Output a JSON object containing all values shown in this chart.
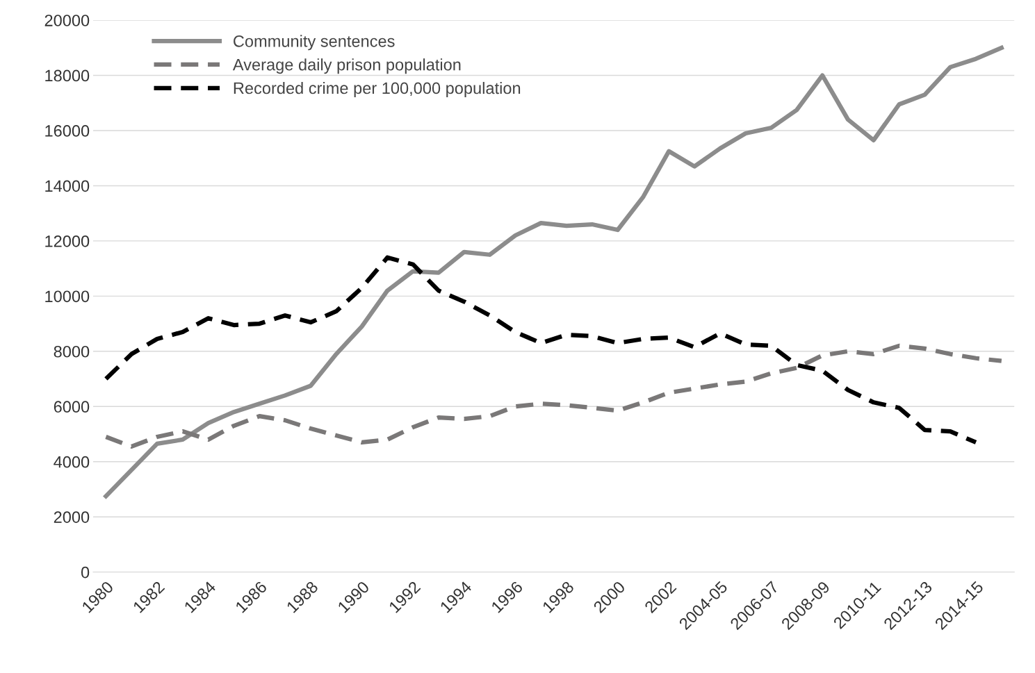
{
  "chart_data": {
    "type": "line",
    "categories": [
      "1980",
      null,
      "1982",
      null,
      "1984",
      null,
      "1986",
      null,
      "1988",
      null,
      "1990",
      null,
      "1992",
      null,
      "1994",
      null,
      "1996",
      null,
      "1998",
      null,
      "2000",
      null,
      "2002",
      null,
      "2004-05",
      null,
      "2006-07",
      null,
      "2008-09",
      null,
      "2010-11",
      null,
      "2012-13",
      null,
      "2014-15",
      null
    ],
    "series": [
      {
        "name": "Community sentences",
        "color": "#8c8c8c",
        "line_style": "solid",
        "values": [
          2750,
          3700,
          4650,
          4800,
          5400,
          5800,
          6100,
          6400,
          6750,
          7900,
          8900,
          10200,
          10900,
          10850,
          11600,
          11500,
          12200,
          12650,
          12550,
          12600,
          12400,
          13600,
          15250,
          14700,
          15350,
          15900,
          16100,
          16750,
          18000,
          16400,
          15650,
          16950,
          17300,
          18300,
          18600,
          19000
        ]
      },
      {
        "name": "Average daily prison population",
        "color": "#7a7878",
        "line_style": "dashed",
        "values": [
          4900,
          4550,
          4900,
          5100,
          4800,
          5300,
          5650,
          5500,
          5200,
          4950,
          4700,
          4800,
          5250,
          5600,
          5550,
          5650,
          6000,
          6100,
          6050,
          5950,
          5850,
          6150,
          6500,
          6650,
          6800,
          6900,
          7200,
          7400,
          7850,
          8000,
          7900,
          8200,
          8100,
          7900,
          7750,
          7650
        ]
      },
      {
        "name": "Recorded crime per 100,000 population",
        "color": "#000000",
        "line_style": "dashed",
        "values": [
          7000,
          7900,
          8450,
          8700,
          9200,
          8950,
          9000,
          9300,
          9050,
          9450,
          10300,
          11400,
          11150,
          10200,
          9800,
          9300,
          8700,
          8300,
          8600,
          8550,
          8300,
          8450,
          8500,
          8150,
          8650,
          8250,
          8200,
          7500,
          7300,
          6600,
          6150,
          5950,
          5150,
          5100,
          4700,
          null
        ]
      }
    ],
    "ylim": [
      0,
      20000
    ],
    "yticks": [
      0,
      2000,
      4000,
      6000,
      8000,
      10000,
      12000,
      14000,
      16000,
      18000,
      20000
    ],
    "grid": "y",
    "legend": "top left",
    "marker": "none"
  }
}
